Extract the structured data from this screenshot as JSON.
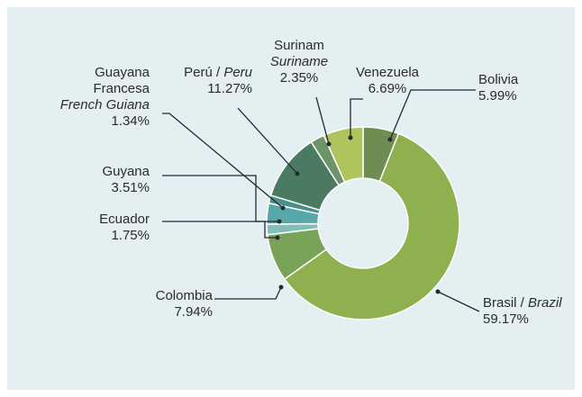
{
  "chart_data": {
    "type": "pie",
    "title": "",
    "slices": [
      {
        "name": "Bolivia",
        "name_en": "",
        "value": 5.99,
        "value_label": "5.99%",
        "color": "#6f8c52"
      },
      {
        "name": "Brasil",
        "name_en": "Brazil",
        "value": 59.17,
        "value_label": "59.17%",
        "color": "#8fb04e"
      },
      {
        "name": "Colombia",
        "name_en": "",
        "value": 7.94,
        "value_label": "7.94%",
        "color": "#7aa35a"
      },
      {
        "name": "Ecuador",
        "name_en": "",
        "value": 1.75,
        "value_label": "1.75%",
        "color": "#82bdb7"
      },
      {
        "name": "Guyana",
        "name_en": "",
        "value": 3.51,
        "value_label": "3.51%",
        "color": "#58a8aa"
      },
      {
        "name": "Guayana Francesa",
        "name_en": "French Guiana",
        "value": 1.34,
        "value_label": "1.34%",
        "color": "#4d8e88"
      },
      {
        "name": "Perú",
        "name_en": "Peru",
        "value": 11.27,
        "value_label": "11.27%",
        "color": "#4b7a62"
      },
      {
        "name": "Surinam",
        "name_en": "Suriname",
        "value": 2.35,
        "value_label": "2.35%",
        "color": "#6d9468"
      },
      {
        "name": "Venezuela",
        "name_en": "",
        "value": 6.69,
        "value_label": "6.69%",
        "color": "#b0c45d"
      }
    ],
    "legend": "none",
    "hole": true
  },
  "labels": {
    "bolivia": {
      "name": "Bolivia",
      "pct": "5.99%"
    },
    "brasil": {
      "name": "Brasil /",
      "name_en": "Brazil",
      "pct": "59.17%"
    },
    "colombia": {
      "name": "Colombia",
      "pct": "7.94%"
    },
    "ecuador": {
      "name": "Ecuador",
      "pct": "1.75%"
    },
    "guyana": {
      "name": "Guyana",
      "pct": "3.51%"
    },
    "guayana": {
      "name1": "Guayana",
      "name2": "Francesa",
      "name_en": "French Guiana",
      "pct": "1.34%"
    },
    "peru": {
      "name": "Perú /",
      "name_en": "Peru",
      "pct": "11.27%"
    },
    "surinam": {
      "name": "Surinam",
      "name_en": "Suriname",
      "pct": "2.35%"
    },
    "venezuela": {
      "name": "Venezuela",
      "pct": "6.69%"
    }
  }
}
